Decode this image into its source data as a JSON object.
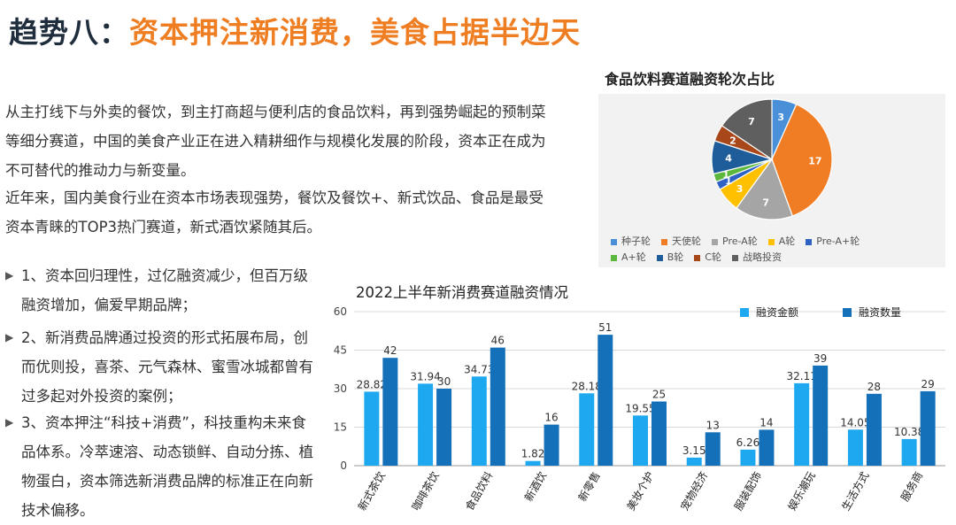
{
  "page": {
    "title_prefix": "趋势八：",
    "title_highlight": "资本押注新消费，美食占据半边天",
    "paragraphs": [
      "从主打线下与外卖的餐饮，到主打商超与便利店的食品饮料，再到强势崛起的预制菜等细分赛道，中国的美食产业正在进入精耕细作与规模化发展的阶段，资本正在成为不可替代的推动力与新变量。",
      "近年来，国内美食行业在资本市场表现强势，餐饮及餐饮+、新式饮品、食品是最受资本青睐的TOP3热门赛道，新式酒饮紧随其后。"
    ],
    "bullet_marker": "▶",
    "bullets": [
      "1、资本回归理性，过亿融资减少，但百万级融资增加，偏爱早期品牌；",
      "2、新消费品牌通过投资的形式拓展布局，创而优则投，喜茶、元气森林、蜜雪冰城都曾有过多起对外投资的案例；",
      "3、资本押注“科技+消费”，科技重构未来食品体系。冷萃速溶、动态锁鲜、自动分拣、植物蛋白，资本筛选新消费品牌的标准正在向新技术偏移。"
    ]
  },
  "chart_data": [
    {
      "type": "pie",
      "title": "食品饮料赛道融资轮次占比",
      "legend_position": "bottom",
      "slices": [
        {
          "label": "种子轮",
          "value": 3,
          "color": "#4a90d9"
        },
        {
          "label": "天使轮",
          "value": 17,
          "color": "#f07d24"
        },
        {
          "label": "Pre-A轮",
          "value": 7,
          "color": "#a5a5a5"
        },
        {
          "label": "A轮",
          "value": 3,
          "color": "#ffc000"
        },
        {
          "label": "Pre-A+轮",
          "value": 1,
          "color": "#2e62c4"
        },
        {
          "label": "A+轮",
          "value": 1,
          "color": "#5cb83c"
        },
        {
          "label": "B轮",
          "value": 4,
          "color": "#1f5d9a"
        },
        {
          "label": "C轮",
          "value": 2,
          "color": "#a8481a"
        },
        {
          "label": "战略投资",
          "value": 7,
          "color": "#5f5f5f"
        }
      ]
    },
    {
      "type": "bar",
      "title": "2022上半年新消费赛道融资情况",
      "categories": [
        "新式茶饮",
        "咖啡茶饮",
        "食品饮料",
        "新酒饮",
        "新零售",
        "美妆个护",
        "宠物经济",
        "服装配饰",
        "娱乐潮玩",
        "生活方式",
        "服务商"
      ],
      "series": [
        {
          "name": "融资金额",
          "values": [
            28.82,
            31.94,
            34.73,
            1.82,
            28.18,
            19.55,
            3.15,
            6.26,
            32.11,
            14.05,
            10.38
          ],
          "color": "#1ea8ef"
        },
        {
          "name": "融资数量",
          "values": [
            42,
            30,
            46,
            16,
            51,
            25,
            13,
            14,
            39,
            28,
            29
          ],
          "color": "#1470b8"
        }
      ],
      "ylim": [
        0,
        60
      ],
      "yticks": [
        0,
        15,
        30,
        45,
        60
      ],
      "grid": true,
      "legend_position": "top-right"
    }
  ]
}
